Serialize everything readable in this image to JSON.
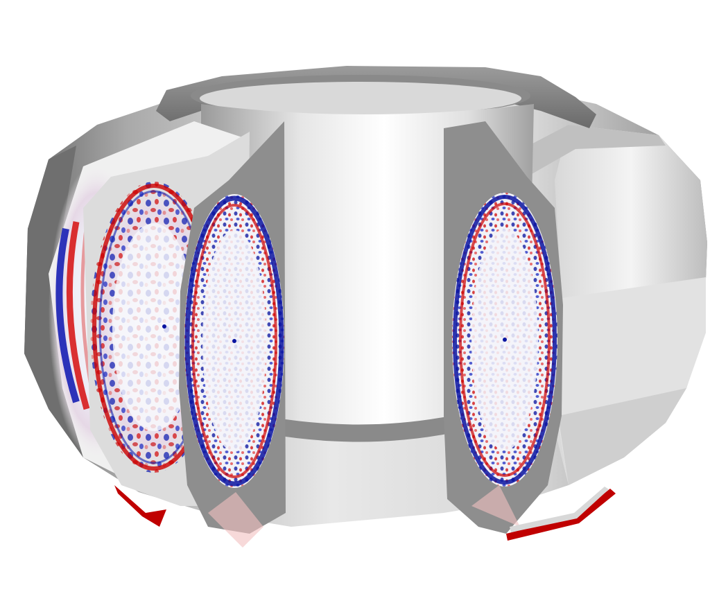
{
  "image": {
    "subject": "tokamak-vessel-cutaway-with-turbulence-cross-sections",
    "colors": {
      "background": "#ffffff",
      "vessel_light": "#f2f2f2",
      "vessel_mid": "#bdbdbd",
      "vessel_dark": "#6e6e6e",
      "section_face": "#8e8e8e",
      "positive": "#d40000",
      "negative": "#0010b0",
      "neutral": "#f4f4f8"
    },
    "cross_sections": [
      {
        "name": "far-left-section"
      },
      {
        "name": "left-section"
      },
      {
        "name": "center-left-section"
      },
      {
        "name": "right-section"
      }
    ]
  }
}
